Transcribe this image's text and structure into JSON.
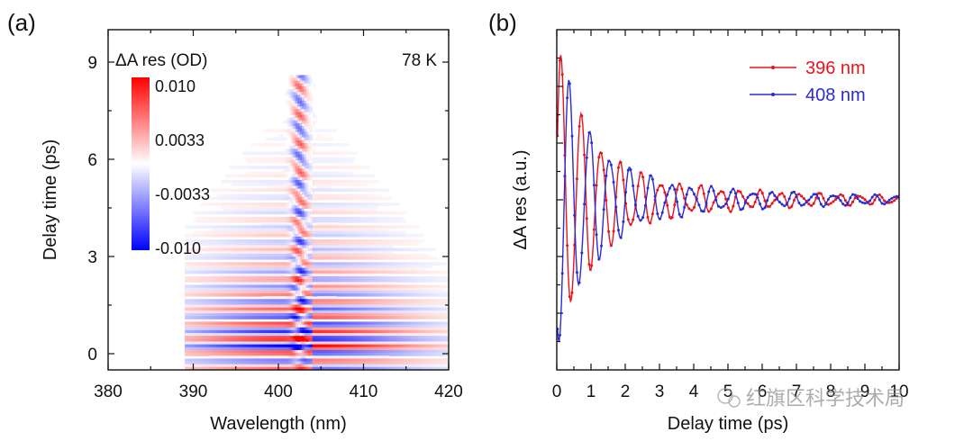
{
  "chart_data": [
    {
      "panel_label": "(a)",
      "type": "heatmap",
      "xlabel": "Wavelength (nm)",
      "ylabel": "Delay time (ps)",
      "xlim": [
        380,
        420
      ],
      "ylim": [
        -0.5,
        10
      ],
      "x_ticks": [
        380,
        390,
        400,
        410,
        420
      ],
      "y_ticks": [
        0,
        3,
        6,
        9
      ],
      "annotation": "78 K",
      "colorbar": {
        "title": "ΔA res (OD)",
        "tick_labels": [
          "0.010",
          "0.0033",
          "-0.0033",
          "-0.010"
        ],
        "range": [
          -0.01,
          0.01
        ],
        "colors": [
          "#ff0000",
          "#ffffff",
          "#0000ff"
        ]
      }
    },
    {
      "panel_label": "(b)",
      "type": "line",
      "xlabel": "Delay time (ps)",
      "ylabel": "ΔA res (a.u.)",
      "xlim": [
        0,
        10
      ],
      "x_ticks": [
        0,
        1,
        2,
        3,
        4,
        5,
        6,
        7,
        8,
        9,
        10
      ],
      "legend_position": "top-right",
      "series": [
        {
          "name": "396 nm",
          "color": "#e8141c"
        },
        {
          "name": "408 nm",
          "color": "#2b2bd6"
        }
      ]
    }
  ],
  "watermark": "红旗区科学技术局"
}
